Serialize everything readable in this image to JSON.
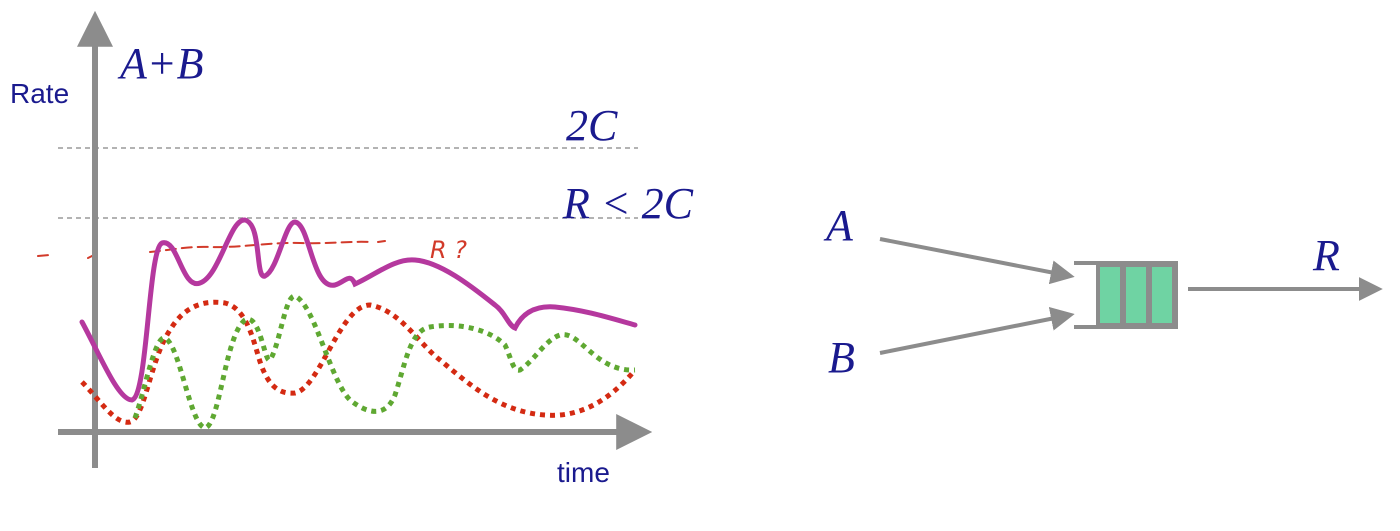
{
  "plot": {
    "y_label": "Rate",
    "x_label": "time",
    "sum_label": "A+B",
    "level_2c_label": "2C",
    "level_r_label": "R < 2C",
    "scribble_label": "R ?",
    "colors": {
      "axis": "#8c8c8c",
      "text": "#1a1a8e",
      "sum_curve": "#b5389e",
      "red_curve": "#d42a12",
      "green_curve": "#5fa832",
      "scribble": "#d23a2a",
      "dashed_level": "#9a9a9a"
    }
  },
  "queue_diagram": {
    "input_a_label": "A",
    "input_b_label": "B",
    "output_label": "R",
    "queue_slots": 3,
    "colors": {
      "arrow": "#8c8c8c",
      "queue_fill": "#6fd3a3",
      "queue_border": "#8c8c8c"
    }
  }
}
